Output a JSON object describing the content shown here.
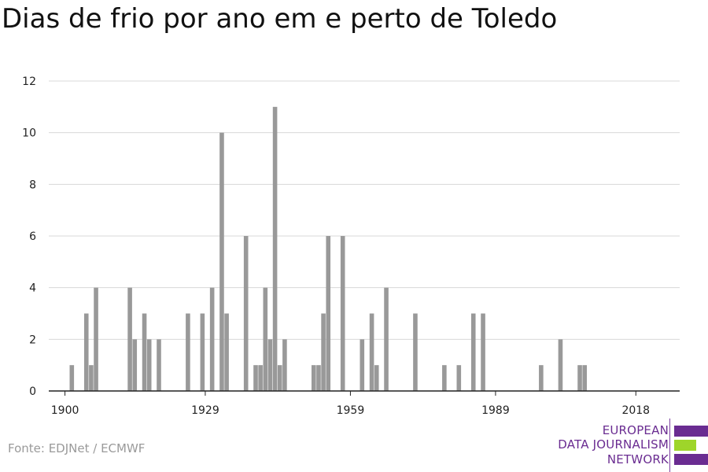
{
  "title": "Dias de frio por ano em e perto de Toledo",
  "source": "Fonte: EDJNet / ECMWF",
  "logo": {
    "lines": [
      "EUROPEAN",
      "DATA JOURNALISM",
      "NETWORK"
    ],
    "colors": {
      "purple": "#6a2c91",
      "green": "#9ed52a"
    }
  },
  "chart_data": {
    "type": "bar",
    "title": "",
    "xlabel": "",
    "ylabel": "",
    "xlim": [
      1900,
      2018
    ],
    "ylim": [
      0,
      12
    ],
    "x_ticks": [
      1900,
      1929,
      1959,
      1989,
      2018
    ],
    "y_ticks": [
      0,
      2,
      4,
      6,
      8,
      10,
      12
    ],
    "grid": true,
    "bar_color": "#999999",
    "x": [
      1901,
      1904,
      1905,
      1906,
      1913,
      1914,
      1916,
      1917,
      1919,
      1925,
      1928,
      1930,
      1932,
      1933,
      1937,
      1939,
      1940,
      1941,
      1942,
      1943,
      1944,
      1945,
      1951,
      1952,
      1953,
      1954,
      1957,
      1961,
      1963,
      1964,
      1966,
      1972,
      1978,
      1981,
      1984,
      1986,
      1998,
      2002,
      2006,
      2007
    ],
    "values": [
      1,
      3,
      1,
      4,
      4,
      2,
      3,
      2,
      2,
      3,
      3,
      4,
      10,
      3,
      6,
      1,
      1,
      4,
      2,
      11,
      1,
      2,
      1,
      1,
      3,
      6,
      6,
      2,
      3,
      1,
      4,
      3,
      1,
      1,
      3,
      3,
      1,
      2,
      1,
      1
    ]
  }
}
